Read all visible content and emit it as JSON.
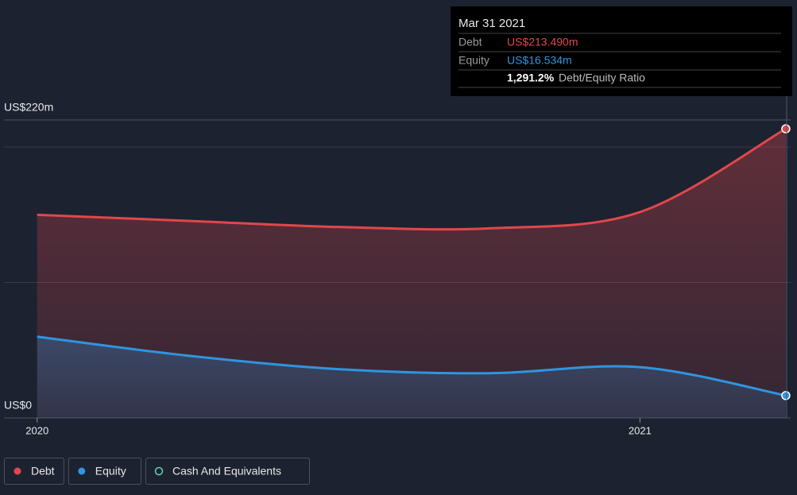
{
  "chart_data": {
    "type": "area",
    "x": [
      2020,
      2020.25,
      2020.5,
      2020.75,
      2021,
      2021.242
    ],
    "xlim": [
      2019.945,
      2021.25
    ],
    "xticks": [
      2020,
      2021
    ],
    "ylim": [
      0,
      220
    ],
    "yticks": [
      {
        "value": 0,
        "label": "US$0"
      },
      {
        "value": 220,
        "label": "US$220m"
      }
    ],
    "gridlines": [
      100,
      200
    ],
    "series": [
      {
        "name": "Debt",
        "color": "#e0474c",
        "values": [
          150,
          145.5,
          141,
          140,
          152,
          213.49
        ]
      },
      {
        "name": "Equity",
        "color": "#2f95e0",
        "values": [
          60,
          46,
          36,
          33,
          37.5,
          16.534
        ]
      },
      {
        "name": "Cash And Equivalents",
        "color": "#5fd3b3",
        "values": [
          null,
          null,
          null,
          null,
          null,
          null
        ]
      }
    ],
    "tooltip": {
      "title": "Mar 31 2021",
      "rows": [
        {
          "label": "Debt",
          "value": "US$213.490m"
        },
        {
          "label": "Equity",
          "value": "US$16.534m"
        }
      ],
      "ratio": "1,291.2%",
      "ratio_label": "Debt/Equity Ratio"
    }
  }
}
